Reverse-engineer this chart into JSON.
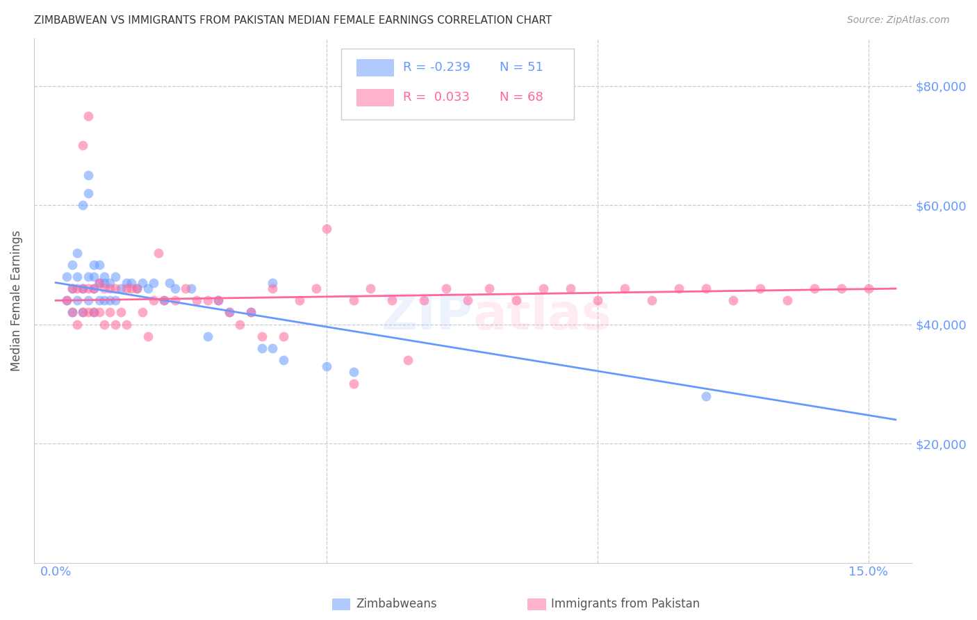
{
  "title": "ZIMBABWEAN VS IMMIGRANTS FROM PAKISTAN MEDIAN FEMALE EARNINGS CORRELATION CHART",
  "source": "Source: ZipAtlas.com",
  "ylabel": "Median Female Earnings",
  "xlim": [
    -0.004,
    0.158
  ],
  "ylim": [
    0,
    88000
  ],
  "y_ticks": [
    20000,
    40000,
    60000,
    80000
  ],
  "y_tick_labels_right": [
    "$20,000",
    "$40,000",
    "$60,000",
    "$80,000"
  ],
  "x_ticks": [
    0.0,
    0.05,
    0.1,
    0.15
  ],
  "x_tick_labels": [
    "0.0%",
    "",
    "",
    "15.0%"
  ],
  "watermark": "ZIPatlas",
  "blue_color": "#6699ff",
  "pink_color": "#ff6699",
  "scatter_size": 100,
  "scatter_alpha": 0.55,
  "grid_color": "#cccccc",
  "background_color": "#ffffff",
  "legend_entries": [
    {
      "label_r": "R = -0.239",
      "label_n": "N = 51",
      "color": "#6699ff"
    },
    {
      "label_r": "R =  0.033",
      "label_n": "N = 68",
      "color": "#ff6699"
    }
  ],
  "bottom_legend": [
    {
      "label": "Zimbabweans",
      "color": "#6699ff"
    },
    {
      "label": "Immigrants from Pakistan",
      "color": "#ff6699"
    }
  ],
  "blue_scatter_x": [
    0.002,
    0.002,
    0.003,
    0.003,
    0.003,
    0.004,
    0.004,
    0.004,
    0.005,
    0.005,
    0.005,
    0.006,
    0.006,
    0.006,
    0.006,
    0.007,
    0.007,
    0.007,
    0.007,
    0.008,
    0.008,
    0.008,
    0.009,
    0.009,
    0.009,
    0.01,
    0.01,
    0.011,
    0.011,
    0.012,
    0.013,
    0.014,
    0.015,
    0.016,
    0.017,
    0.018,
    0.02,
    0.021,
    0.022,
    0.025,
    0.028,
    0.03,
    0.032,
    0.036,
    0.038,
    0.04,
    0.042,
    0.05,
    0.055,
    0.12,
    0.04
  ],
  "blue_scatter_y": [
    44000,
    48000,
    42000,
    46000,
    50000,
    52000,
    48000,
    44000,
    46000,
    42000,
    60000,
    65000,
    62000,
    48000,
    44000,
    50000,
    48000,
    46000,
    42000,
    50000,
    47000,
    44000,
    48000,
    47000,
    44000,
    47000,
    44000,
    48000,
    44000,
    46000,
    47000,
    47000,
    46000,
    47000,
    46000,
    47000,
    44000,
    47000,
    46000,
    46000,
    38000,
    44000,
    42000,
    42000,
    36000,
    36000,
    34000,
    33000,
    32000,
    28000,
    47000
  ],
  "pink_scatter_x": [
    0.002,
    0.003,
    0.003,
    0.004,
    0.004,
    0.005,
    0.005,
    0.005,
    0.006,
    0.006,
    0.007,
    0.007,
    0.008,
    0.008,
    0.009,
    0.009,
    0.01,
    0.01,
    0.011,
    0.011,
    0.012,
    0.013,
    0.013,
    0.014,
    0.015,
    0.016,
    0.017,
    0.018,
    0.019,
    0.02,
    0.022,
    0.024,
    0.026,
    0.028,
    0.03,
    0.032,
    0.034,
    0.036,
    0.038,
    0.04,
    0.042,
    0.045,
    0.048,
    0.05,
    0.055,
    0.058,
    0.062,
    0.065,
    0.068,
    0.072,
    0.076,
    0.08,
    0.085,
    0.09,
    0.095,
    0.1,
    0.105,
    0.11,
    0.115,
    0.12,
    0.125,
    0.13,
    0.135,
    0.14,
    0.145,
    0.15,
    0.006,
    0.055
  ],
  "pink_scatter_y": [
    44000,
    46000,
    42000,
    46000,
    40000,
    46000,
    42000,
    70000,
    46000,
    42000,
    46000,
    42000,
    47000,
    42000,
    46000,
    40000,
    46000,
    42000,
    46000,
    40000,
    42000,
    46000,
    40000,
    46000,
    46000,
    42000,
    38000,
    44000,
    52000,
    44000,
    44000,
    46000,
    44000,
    44000,
    44000,
    42000,
    40000,
    42000,
    38000,
    46000,
    38000,
    44000,
    46000,
    56000,
    44000,
    46000,
    44000,
    34000,
    44000,
    46000,
    44000,
    46000,
    44000,
    46000,
    46000,
    44000,
    46000,
    44000,
    46000,
    46000,
    44000,
    46000,
    44000,
    46000,
    46000,
    46000,
    75000,
    30000
  ],
  "blue_line_x0": 0.0,
  "blue_line_x1": 0.155,
  "blue_line_y0": 47000,
  "blue_line_y1": 24000,
  "pink_line_x0": 0.0,
  "pink_line_x1": 0.155,
  "pink_line_y0": 44000,
  "pink_line_y1": 46000
}
